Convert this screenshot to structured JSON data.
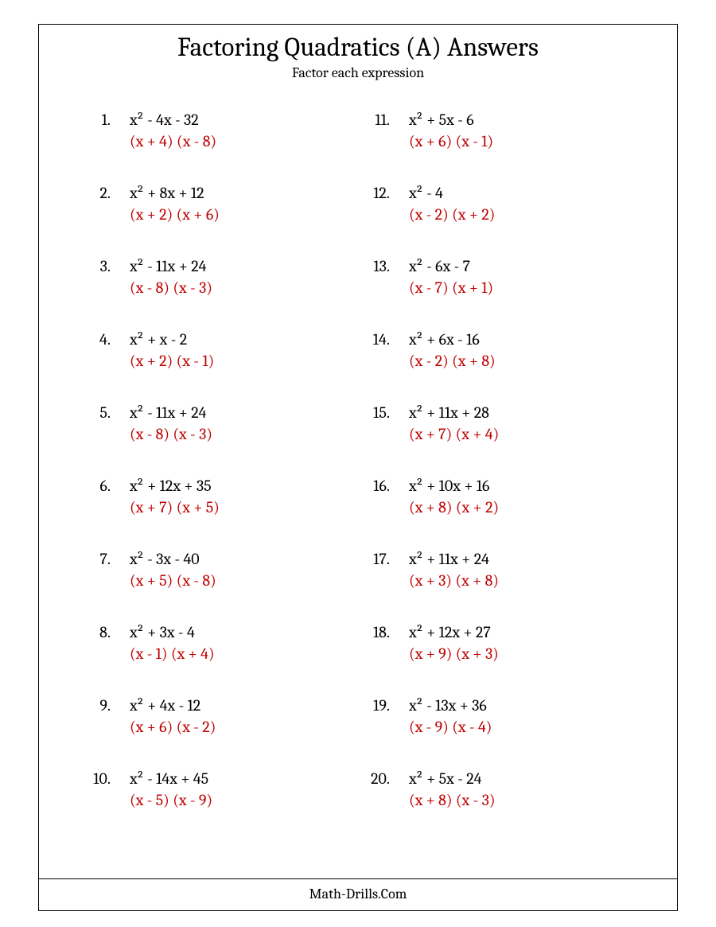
{
  "title": "Factoring Quadratics (A) Answers",
  "subtitle": "Factor each expression",
  "footer": "Math-Drills.Com",
  "colors": {
    "answer": "#c00000",
    "text": "#000000",
    "border": "#000000",
    "background": "#ffffff"
  },
  "typography": {
    "title_fontsize": 33,
    "subtitle_fontsize": 18,
    "body_fontsize": 20,
    "font_family": "Cambria, Georgia, serif"
  },
  "layout": {
    "columns": 2,
    "rows_per_column": 10
  },
  "problems": [
    {
      "n": "1.",
      "expr": "x² - 4x - 32",
      "ans": "(x + 4) (x - 8)"
    },
    {
      "n": "2.",
      "expr": "x² + 8x + 12",
      "ans": "(x + 2) (x + 6)"
    },
    {
      "n": "3.",
      "expr": "x² - 11x + 24",
      "ans": "(x - 8) (x - 3)"
    },
    {
      "n": "4.",
      "expr": "x² + x - 2",
      "ans": "(x + 2) (x - 1)"
    },
    {
      "n": "5.",
      "expr": "x² - 11x + 24",
      "ans": "(x - 8) (x - 3)"
    },
    {
      "n": "6.",
      "expr": "x² + 12x + 35",
      "ans": "(x + 7) (x + 5)"
    },
    {
      "n": "7.",
      "expr": "x² - 3x - 40",
      "ans": "(x + 5) (x - 8)"
    },
    {
      "n": "8.",
      "expr": "x² + 3x - 4",
      "ans": "(x - 1) (x + 4)"
    },
    {
      "n": "9.",
      "expr": "x² + 4x - 12",
      "ans": "(x + 6) (x - 2)"
    },
    {
      "n": "10.",
      "expr": "x² - 14x + 45",
      "ans": "(x - 5) (x - 9)"
    },
    {
      "n": "11.",
      "expr": "x² + 5x - 6",
      "ans": "(x + 6) (x - 1)"
    },
    {
      "n": "12.",
      "expr": "x² - 4",
      "ans": "(x - 2) (x + 2)"
    },
    {
      "n": "13.",
      "expr": "x² - 6x - 7",
      "ans": "(x - 7) (x + 1)"
    },
    {
      "n": "14.",
      "expr": "x² + 6x - 16",
      "ans": "(x - 2) (x + 8)"
    },
    {
      "n": "15.",
      "expr": "x² + 11x + 28",
      "ans": "(x + 7) (x + 4)"
    },
    {
      "n": "16.",
      "expr": "x² + 10x + 16",
      "ans": "(x + 8) (x + 2)"
    },
    {
      "n": "17.",
      "expr": "x² + 11x + 24",
      "ans": "(x + 3) (x + 8)"
    },
    {
      "n": "18.",
      "expr": "x² + 12x + 27",
      "ans": "(x + 9) (x + 3)"
    },
    {
      "n": "19.",
      "expr": "x² - 13x + 36",
      "ans": "(x - 9) (x - 4)"
    },
    {
      "n": "20.",
      "expr": "x² + 5x - 24",
      "ans": "(x + 8) (x - 3)"
    }
  ]
}
